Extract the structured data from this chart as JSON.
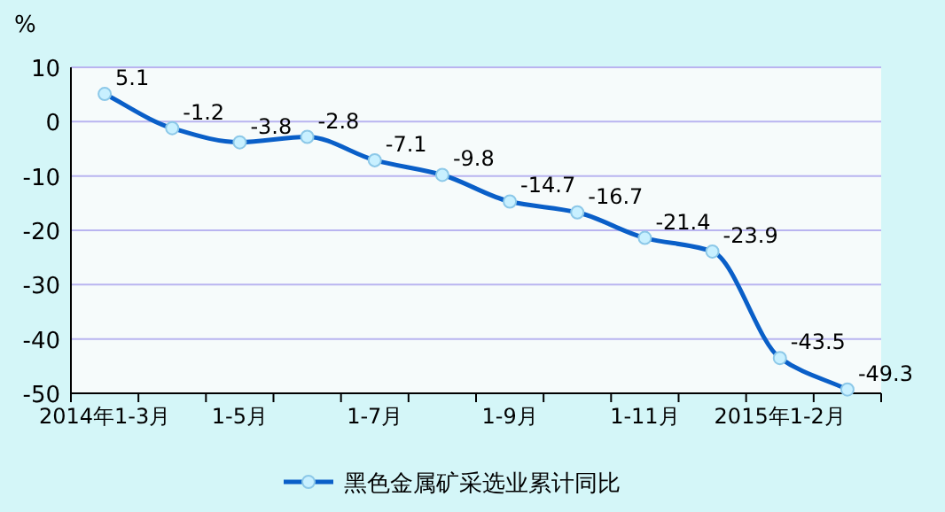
{
  "chart_data": {
    "type": "line",
    "ylabel": "%",
    "categories": [
      "2014年1-3月",
      null,
      "1-5月",
      null,
      "1-7月",
      null,
      "1-9月",
      null,
      "1-11月",
      null,
      "2015年1-2月",
      null
    ],
    "series": [
      {
        "name": "黑色金属矿采选业累计同比",
        "color": "#0a5fc8",
        "values": [
          5.1,
          -1.2,
          -3.8,
          -2.8,
          -7.1,
          -9.8,
          -14.7,
          -16.7,
          -21.4,
          -23.9,
          -43.5,
          -49.3
        ]
      }
    ],
    "ylim": [
      -50,
      10
    ],
    "yticks": [
      -50,
      -40,
      -30,
      -20,
      -10,
      0,
      10
    ],
    "grid": "y",
    "legend": "bottom",
    "marker": "circle",
    "data_labels": true
  }
}
